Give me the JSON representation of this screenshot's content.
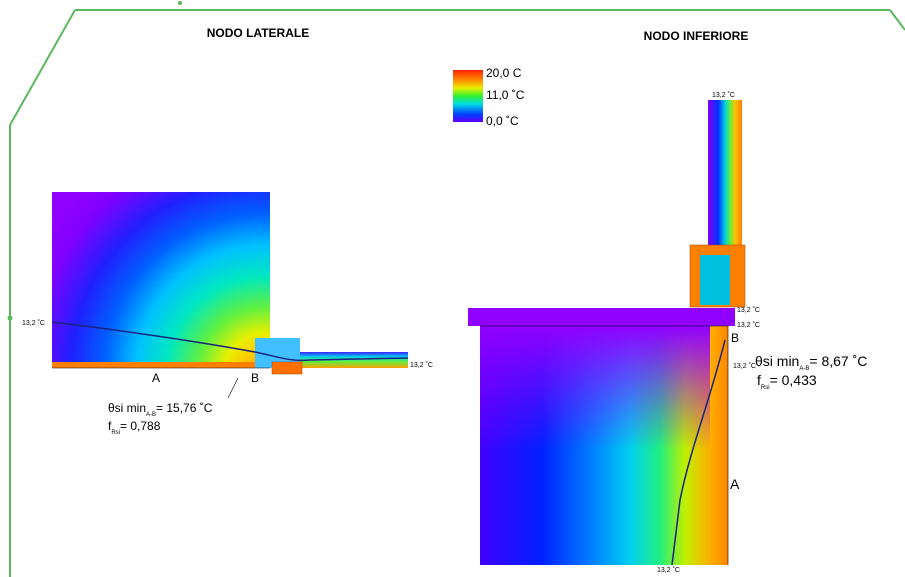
{
  "legend": {
    "labels": [
      "20,0  C",
      "11,0 ˚C",
      "0,0 ˚C"
    ]
  },
  "left_node": {
    "title": "NODO LATERALE",
    "temp_left": "13,2 ˚C",
    "temp_right": "13,2 ˚C",
    "point_a": "A",
    "point_b": "B",
    "theta_label": "θsi min",
    "theta_sub": "A-B",
    "theta_value": "= 15,76 ˚C",
    "f_label": "f",
    "f_sub": "Rsi",
    "f_value": "= 0,788"
  },
  "right_node": {
    "title": "NODO INFERIORE",
    "temp_top": "13,2 ˚C",
    "temp_window_1": "13,2 ˚C",
    "temp_window_2": "13,2 ˚C",
    "temp_side": "13,2 ˚C",
    "temp_bottom": "13,2 ˚C",
    "point_a": "A",
    "point_b": "B",
    "theta_label": "θsi min",
    "theta_sub": "A-B",
    "theta_value": "= 8,67 ˚C",
    "f_label": "f",
    "f_sub": "Rsi",
    "f_value": "= 0,433"
  }
}
